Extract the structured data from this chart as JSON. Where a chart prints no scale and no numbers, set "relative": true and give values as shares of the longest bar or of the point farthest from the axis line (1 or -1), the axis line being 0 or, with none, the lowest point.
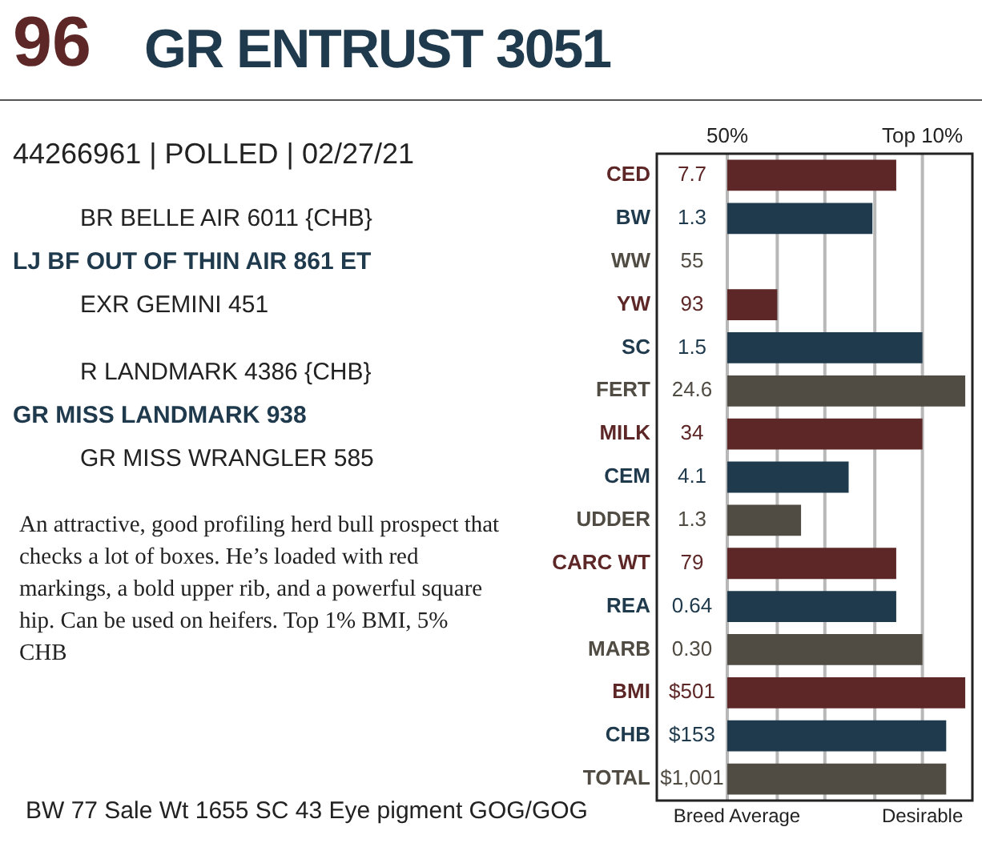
{
  "chart_data": {
    "type": "bar",
    "orientation": "horizontal",
    "relative": true,
    "title": "GR ENTRUST 3051",
    "categories": [
      "CED",
      "BW",
      "WW",
      "YW",
      "SC",
      "FERT",
      "MILK",
      "CEM",
      "UDDER",
      "CARC WT",
      "REA",
      "MARB",
      "BMI",
      "CHB",
      "TOTAL"
    ],
    "values": [
      0.71,
      0.61,
      0,
      0.21,
      0.82,
      1,
      0.82,
      0.51,
      0.31,
      0.71,
      0.71,
      0.82,
      1,
      0.92,
      0.92
    ],
    "colors": [
      "#5e2727",
      "#1f3a4d",
      "#514c43",
      "#5e2727",
      "#1f3a4d",
      "#514c43",
      "#5e2727",
      "#1f3a4d",
      "#514c43",
      "#5e2727",
      "#1f3a4d",
      "#514c43",
      "#5e2727",
      "#1f3a4d",
      "#514c43"
    ],
    "legend": false,
    "ref_lines": [
      {
        "axis": "x",
        "value": 0,
        "color": "#b8b8b8"
      },
      {
        "axis": "x",
        "value": 0.21,
        "color": "#b8b8b8"
      },
      {
        "axis": "x",
        "value": 0.41,
        "color": "#b8b8b8"
      },
      {
        "axis": "x",
        "value": 0.62,
        "color": "#b8b8b8"
      },
      {
        "axis": "x",
        "value": 0.82,
        "color": "#b8b8b8"
      }
    ],
    "annotations": [
      "96",
      "44266961 | POLLED | 02/27/21",
      "BR BELLE AIR 6011 {CHB}",
      "LJ BF OUT OF THIN AIR 861 ET",
      "EXR GEMINI 451",
      "R LANDMARK 4386 {CHB}",
      "GR MISS LANDMARK 938",
      "GR MISS WRANGLER 585",
      "An attractive, good profiling herd bull prospect that checks a lot of boxes. He’s loaded with red markings, a bold upper rib, and a powerful square hip. Can be used on heifers. Top 1% BMI, 5% CHB",
      "BW 77   Sale Wt 1655   SC 43   Eye pigment GOG/GOG",
      "50%",
      "Top 10%",
      "Breed Average",
      "Desirable",
      "7.7",
      "1.3",
      "55",
      "93",
      "1.5",
      "24.6",
      "34",
      "4.1",
      "1.3",
      "79",
      "0.64",
      "0.30",
      "$501",
      "$153",
      "$1,001"
    ]
  }
}
